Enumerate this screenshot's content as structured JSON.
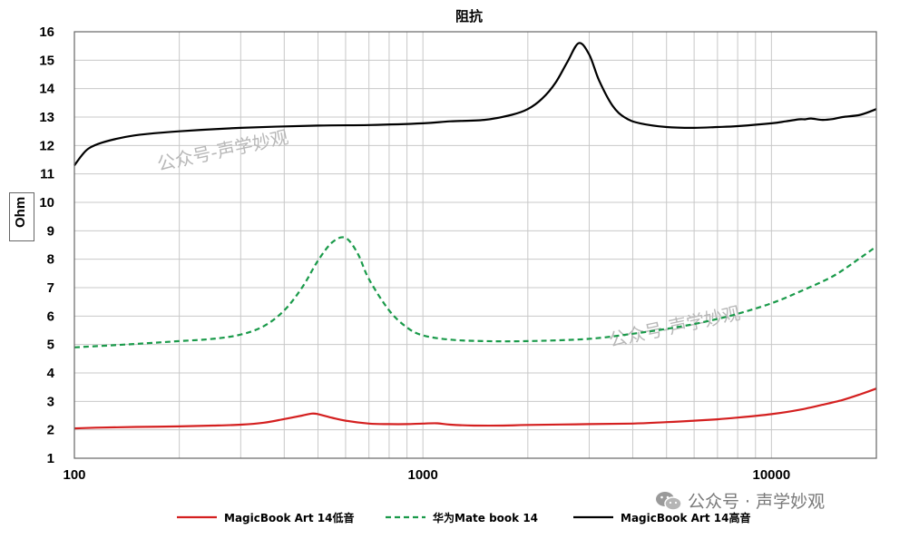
{
  "chart_data": {
    "type": "line",
    "title": "阻抗",
    "ylabel": "Ohm",
    "xlabel": "",
    "xscale": "log",
    "xlim": [
      100,
      20000
    ],
    "ylim": [
      1,
      16
    ],
    "grid": true,
    "legend_position": "bottom",
    "x_ticks": [
      "100",
      "1000",
      "10000"
    ],
    "y_ticks": [
      "1",
      "2",
      "3",
      "4",
      "5",
      "6",
      "7",
      "8",
      "9",
      "10",
      "11",
      "12",
      "13",
      "14",
      "15",
      "16"
    ],
    "series": [
      {
        "name": "MagicBook Art 14低音",
        "color": "#d42020",
        "style": "solid",
        "x": [
          100,
          120,
          150,
          200,
          250,
          300,
          350,
          400,
          450,
          480,
          500,
          550,
          600,
          700,
          800,
          900,
          1000,
          1100,
          1200,
          1400,
          1700,
          2000,
          3000,
          4000,
          5000,
          6000,
          7000,
          8000,
          10000,
          12000,
          14000,
          16000,
          18000,
          20000
        ],
        "y": [
          2.05,
          2.08,
          2.1,
          2.12,
          2.15,
          2.18,
          2.25,
          2.38,
          2.5,
          2.57,
          2.55,
          2.42,
          2.32,
          2.22,
          2.2,
          2.2,
          2.22,
          2.23,
          2.18,
          2.15,
          2.15,
          2.17,
          2.2,
          2.22,
          2.27,
          2.32,
          2.37,
          2.43,
          2.55,
          2.7,
          2.88,
          3.05,
          3.25,
          3.45
        ]
      },
      {
        "name": "华为Mate book 14",
        "color": "#1a9a4a",
        "style": "dashed",
        "x": [
          100,
          150,
          200,
          250,
          300,
          350,
          400,
          450,
          500,
          550,
          600,
          650,
          700,
          800,
          900,
          1000,
          1200,
          1500,
          2000,
          3000,
          4000,
          5000,
          6000,
          7000,
          8000,
          10000,
          12000,
          15000,
          18000,
          20000
        ],
        "y": [
          4.9,
          5.02,
          5.12,
          5.2,
          5.35,
          5.65,
          6.2,
          7.0,
          7.95,
          8.6,
          8.75,
          8.2,
          7.3,
          6.2,
          5.6,
          5.32,
          5.17,
          5.12,
          5.12,
          5.2,
          5.38,
          5.55,
          5.72,
          5.9,
          6.08,
          6.45,
          6.85,
          7.4,
          8.05,
          8.45
        ]
      },
      {
        "name": "MagicBook Art 14高音",
        "color": "#000000",
        "style": "solid",
        "x": [
          100,
          105,
          110,
          120,
          140,
          160,
          200,
          300,
          500,
          700,
          1000,
          1200,
          1500,
          1800,
          2000,
          2200,
          2400,
          2600,
          2800,
          3000,
          3200,
          3500,
          3800,
          4200,
          5000,
          6000,
          7000,
          8000,
          10000,
          11000,
          12000,
          12500,
          13000,
          14000,
          15000,
          16000,
          18000,
          20000
        ],
        "y": [
          11.3,
          11.65,
          11.9,
          12.1,
          12.3,
          12.4,
          12.5,
          12.62,
          12.7,
          12.72,
          12.78,
          12.85,
          12.9,
          13.08,
          13.28,
          13.65,
          14.2,
          14.95,
          15.6,
          15.2,
          14.3,
          13.4,
          12.98,
          12.78,
          12.65,
          12.62,
          12.65,
          12.68,
          12.78,
          12.85,
          12.92,
          12.92,
          12.95,
          12.9,
          12.93,
          13.0,
          13.08,
          13.28
        ]
      }
    ]
  },
  "watermarks": {
    "text_1": "公众号-声学妙观",
    "text_2": "公众号-声学妙观",
    "corner_text": "公众号 · 声学妙观"
  }
}
